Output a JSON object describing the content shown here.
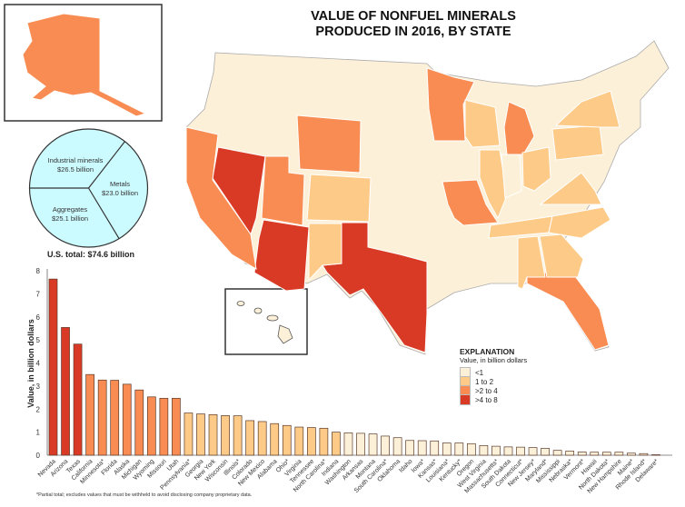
{
  "title_lines": [
    "VALUE OF NONFUEL MINERALS",
    "PRODUCED IN 2016, BY STATE"
  ],
  "colors": {
    "lt1": "#fdf0d8",
    "r1to2": "#fdca88",
    "r2to4": "#f98c52",
    "r4to8": "#d93a26",
    "outline": "#ffffff"
  },
  "pie": {
    "slices": [
      {
        "label": "Industrial minerals",
        "value_text": "$26.5 billion",
        "value": 26.5
      },
      {
        "label": "Metals",
        "value_text": "$23.0 billion",
        "value": 23.0
      },
      {
        "label": "Aggregates",
        "value_text": "$25.1 billion",
        "value": 25.1
      }
    ],
    "total": "U.S. total: $74.6 billion",
    "fill": "#ccfbff"
  },
  "legend": {
    "title": "EXPLANATION",
    "subtitle": "Value, in billion dollars",
    "items": [
      {
        "label": "<1",
        "color": "#fdf0d8"
      },
      {
        "label": "1 to 2",
        "color": "#fdca88"
      },
      {
        "label": ">2 to 4",
        "color": "#f98c52"
      },
      {
        "label": ">4 to 8",
        "color": "#d93a26"
      }
    ]
  },
  "chart_data": {
    "type": "bar",
    "ylabel": "Value, in billion dollars",
    "xlabel": "",
    "ylim": [
      0,
      8
    ],
    "yticks": [
      0,
      1,
      2,
      3,
      4,
      5,
      6,
      7,
      8
    ],
    "grid": false,
    "categories": [
      "Nevada",
      "Arizona",
      "Texas",
      "California",
      "Minnesota*",
      "Florida",
      "Alaska",
      "Michigan",
      "Wyoming",
      "Missouri",
      "Utah",
      "Pennsylvania*",
      "Georgia",
      "New York",
      "Wisconsin",
      "Illinois*",
      "Colorado",
      "New Mexico",
      "Alabama",
      "Ohio*",
      "Virginia",
      "Tennessee",
      "North Carolina*",
      "Indiana",
      "Washington",
      "Arkansas",
      "Montana",
      "South Carolina*",
      "Oklahoma",
      "Idaho",
      "Iowa*",
      "Kansas*",
      "Louisiana*",
      "Kentucky*",
      "Oregon",
      "West Virginia",
      "Massachusetts*",
      "South Dakota",
      "Connecticut*",
      "New Jersey*",
      "Maryland*",
      "Mississippi",
      "Nebraska*",
      "Vermont*",
      "Hawaii",
      "North Dakota*",
      "New Hampshire",
      "Maine*",
      "Rhode Island*",
      "Delaware*"
    ],
    "values": [
      7.64,
      5.54,
      4.82,
      3.5,
      3.26,
      3.25,
      3.08,
      2.83,
      2.53,
      2.47,
      2.47,
      1.83,
      1.79,
      1.76,
      1.72,
      1.71,
      1.5,
      1.46,
      1.37,
      1.29,
      1.22,
      1.2,
      1.17,
      1.0,
      0.97,
      0.95,
      0.92,
      0.83,
      0.76,
      0.64,
      0.63,
      0.62,
      0.53,
      0.53,
      0.5,
      0.42,
      0.39,
      0.36,
      0.35,
      0.33,
      0.3,
      0.21,
      0.18,
      0.14,
      0.13,
      0.13,
      0.13,
      0.09,
      0.07,
      0.02
    ]
  },
  "footnote": "*Partial total; excludes values that must be withheld to avoid disclosing company proprietary data."
}
